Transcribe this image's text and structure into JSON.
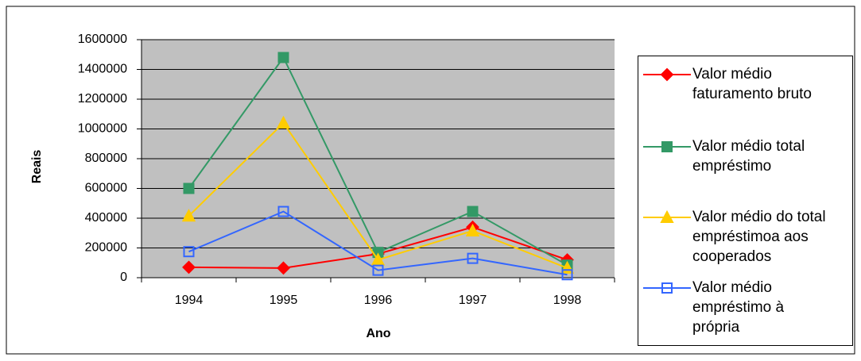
{
  "chart_data": {
    "type": "line",
    "x_label": "Ano",
    "y_label": "Reais",
    "categories": [
      "1994",
      "1995",
      "1996",
      "1997",
      "1998"
    ],
    "ylim": [
      0,
      1600000
    ],
    "yticks": [
      0,
      200000,
      400000,
      600000,
      800000,
      1000000,
      1200000,
      1400000,
      1600000
    ],
    "grid": true,
    "legend": "right",
    "series": [
      {
        "name": "Valor médio\nfaturamento bruto",
        "color": "#ff0000",
        "marker": "diamond",
        "filled": true,
        "values": [
          70000,
          65000,
          160000,
          340000,
          120000
        ]
      },
      {
        "name": "Valor médio total\nempréstimo",
        "color": "#339966",
        "marker": "square",
        "filled": true,
        "values": [
          600000,
          1480000,
          170000,
          445000,
          85000
        ]
      },
      {
        "name": "Valor médio do total\nempréstimoa aos\ncooperados",
        "color": "#ffcc00",
        "marker": "triangle",
        "filled": true,
        "values": [
          415000,
          1040000,
          120000,
          315000,
          65000
        ]
      },
      {
        "name": "Valor médio\nempréstimo à\nprópria",
        "color": "#3366ff",
        "marker": "square",
        "filled": false,
        "values": [
          175000,
          445000,
          50000,
          130000,
          20000
        ]
      }
    ]
  }
}
